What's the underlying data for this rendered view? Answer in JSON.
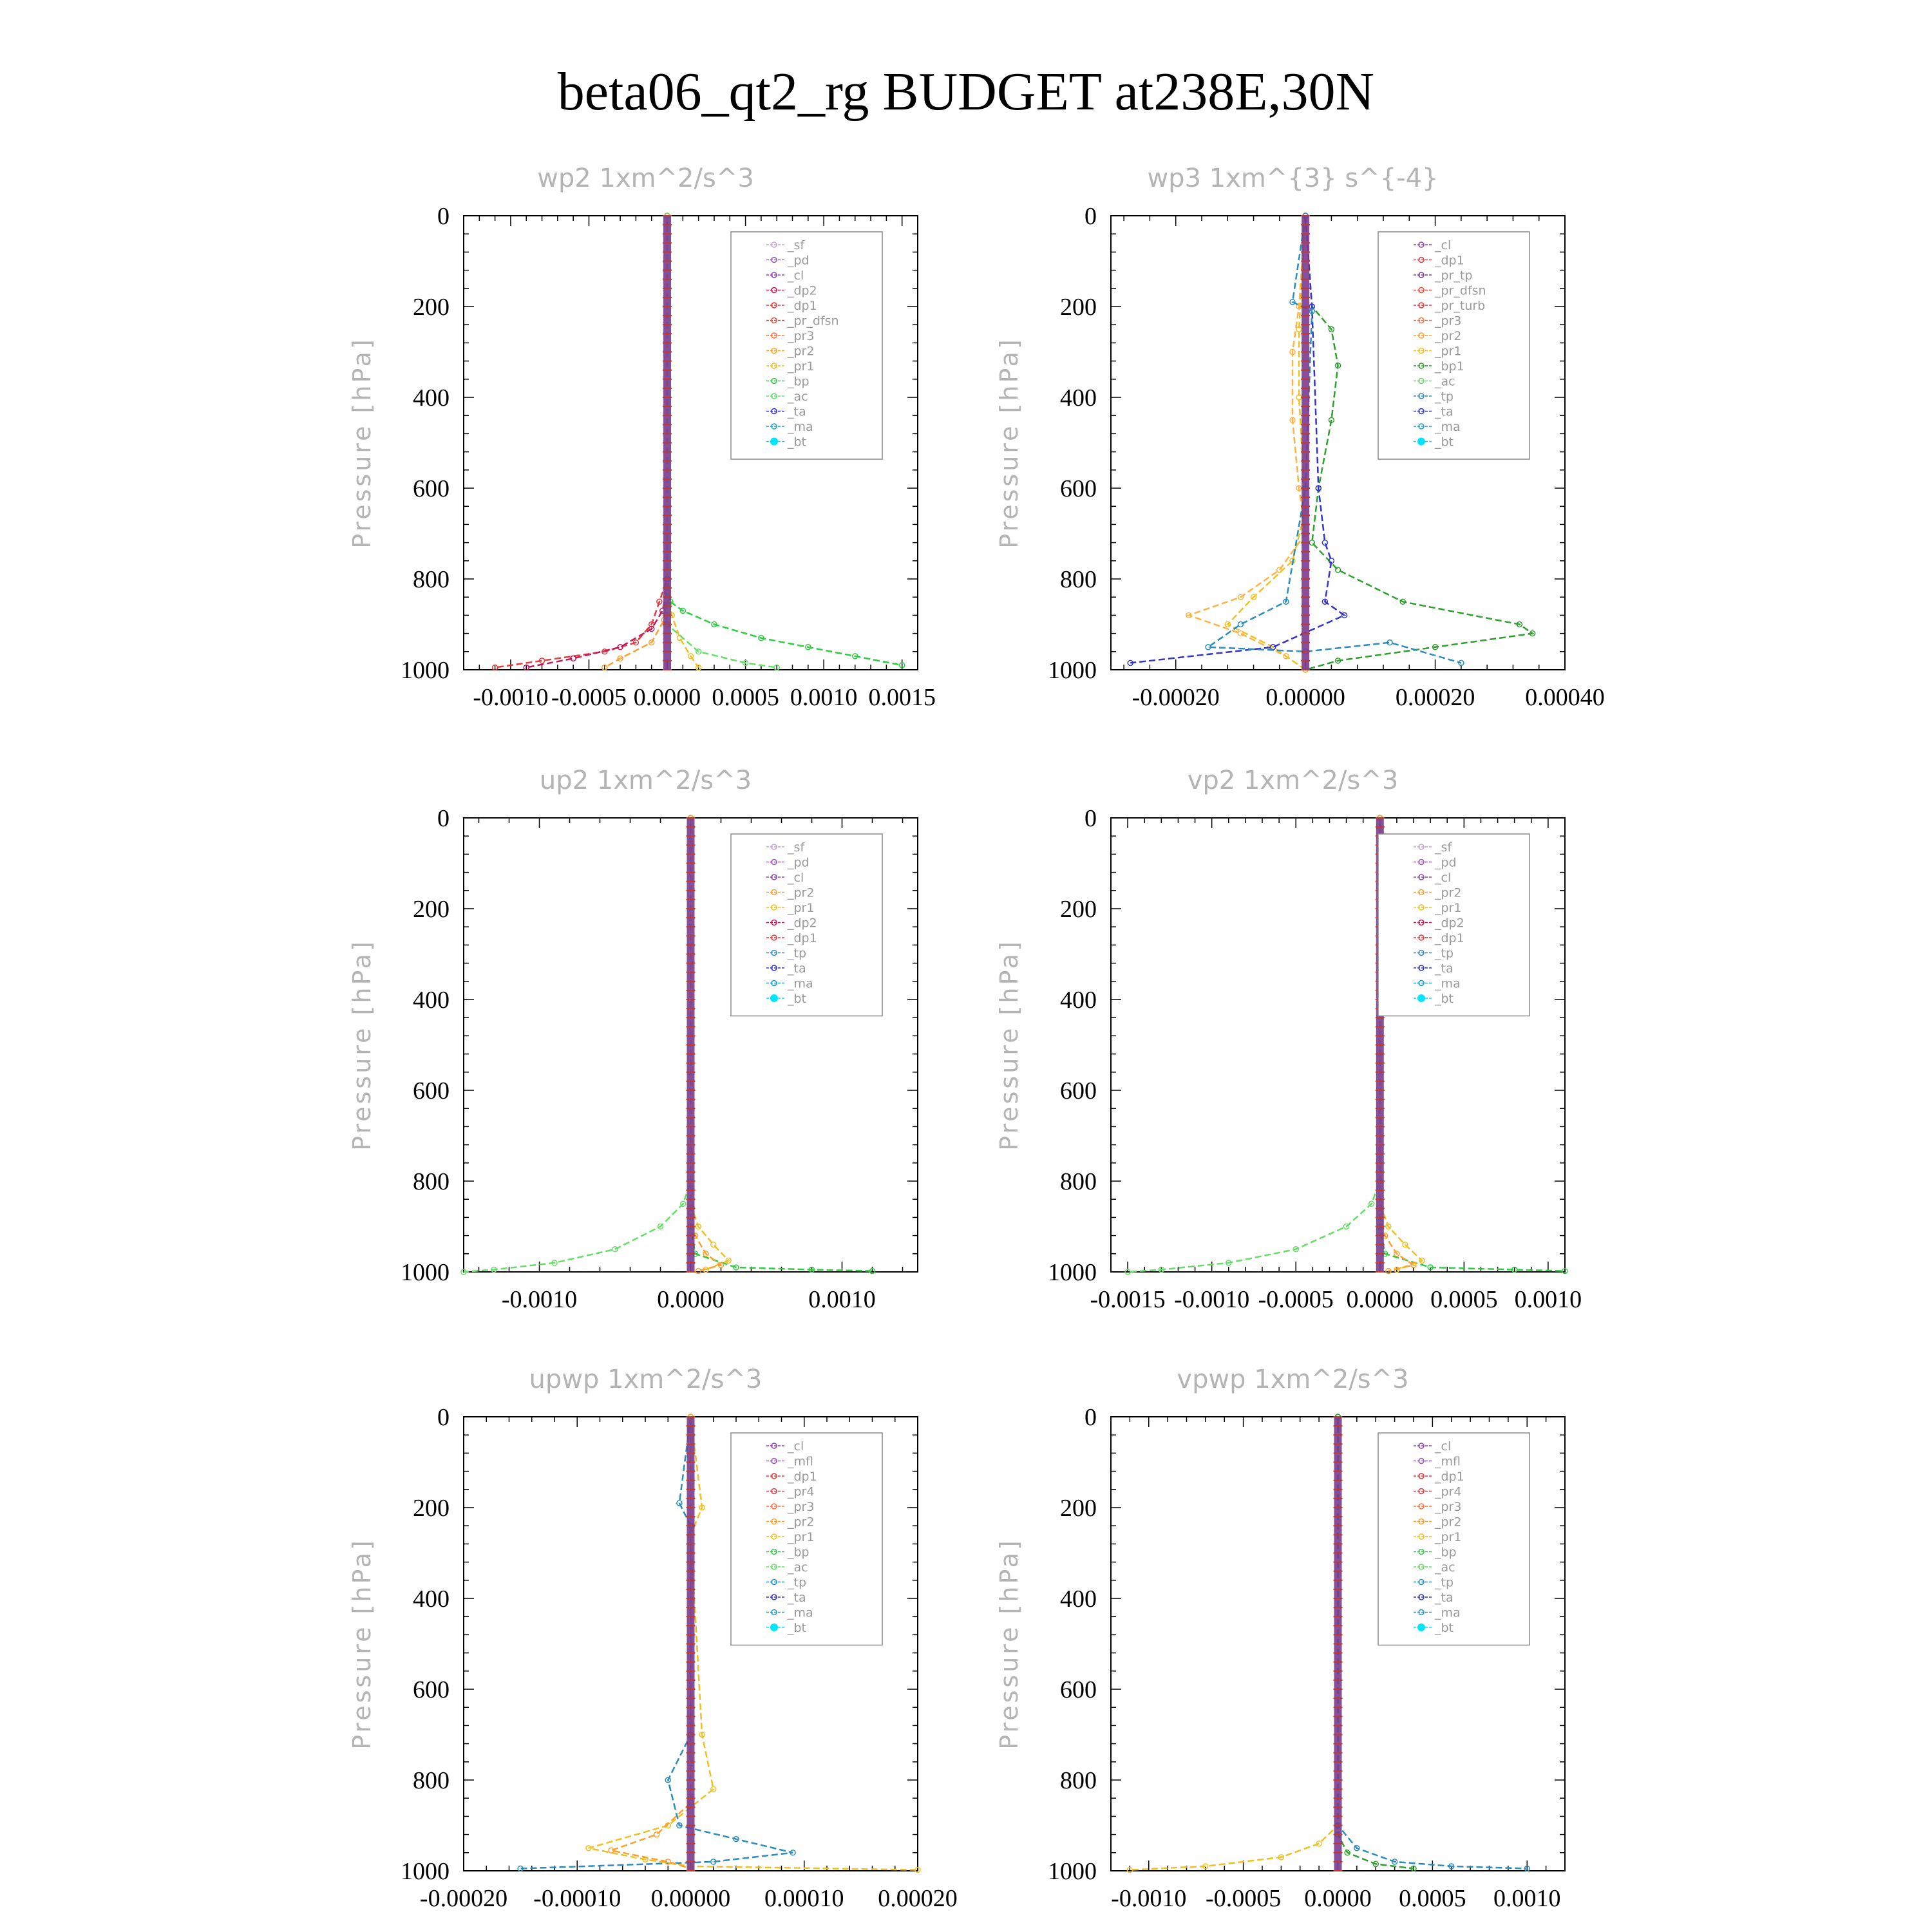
{
  "figure_title": "beta06_qt2_rg  BUDGET at238E,30N",
  "chart_data": [
    {
      "id": "wp2",
      "type": "line",
      "title": "wp2   1xm^2/s^3",
      "ylabel": "Pressure [hPa]",
      "ylim": [
        1000,
        0
      ],
      "yticks": [
        "0",
        "200",
        "400",
        "600",
        "800",
        "1000"
      ],
      "xlim": [
        -0.0013,
        0.0016
      ],
      "xticks": [
        -0.001,
        -0.0005,
        0.0,
        0.0005,
        0.001,
        0.0015
      ],
      "xticklabels": [
        "-0.0010",
        "-0.0005",
        "0.0000",
        "0.0005",
        "0.0010",
        "0.0015"
      ],
      "legend": [
        "_sf",
        "_pd",
        "_cl",
        "_dp2",
        "_dp1",
        "_pr_dfsn",
        "_pr3",
        "_pr2",
        "_pr1",
        "_bp",
        "_ac",
        "_ta",
        "_ma",
        "_bt"
      ],
      "series": [
        {
          "name": "_bp",
          "color": "#2ecc40",
          "x": [
            0,
            0,
            2e-05,
            0.0001,
            0.0003,
            0.0006,
            0.0009,
            0.0012,
            0.0015
          ],
          "y": [
            0,
            800,
            850,
            870,
            900,
            930,
            950,
            970,
            990
          ]
        },
        {
          "name": "_dp1",
          "color": "#e8383d",
          "x": [
            0,
            0,
            -5e-05,
            -0.0001,
            -0.0002,
            -0.0004,
            -0.0008,
            -0.0011
          ],
          "y": [
            0,
            800,
            850,
            900,
            940,
            960,
            980,
            995
          ]
        },
        {
          "name": "_dp2",
          "color": "#c2185b",
          "x": [
            0,
            0,
            -3e-05,
            -0.0001,
            -0.0003,
            -0.0006,
            -0.0009
          ],
          "y": [
            0,
            820,
            870,
            910,
            950,
            975,
            995
          ]
        },
        {
          "name": "_pr1",
          "color": "#f0c020",
          "x": [
            0,
            0,
            3e-05,
            8e-05,
            0.00015,
            0.0002
          ],
          "y": [
            0,
            820,
            880,
            930,
            970,
            995
          ]
        },
        {
          "name": "_pr2",
          "color": "#ff9f2e",
          "x": [
            0,
            0,
            -2e-05,
            -0.0001,
            -0.0003,
            -0.0004
          ],
          "y": [
            0,
            830,
            890,
            940,
            975,
            995
          ]
        },
        {
          "name": "_ac",
          "color": "#66dd66",
          "x": [
            0,
            0,
            0.0002,
            0.0005,
            0.0007
          ],
          "y": [
            0,
            900,
            960,
            985,
            995
          ]
        }
      ]
    },
    {
      "id": "wp3",
      "type": "line",
      "title": "wp3   1xm^{3} s^{-4}",
      "ylabel": "Pressure [hPa]",
      "ylim": [
        1000,
        0
      ],
      "yticks": [
        "0",
        "200",
        "400",
        "600",
        "800",
        "1000"
      ],
      "xlim": [
        -0.0003,
        0.0004
      ],
      "xticks": [
        -0.0002,
        0.0,
        0.0002,
        0.0004
      ],
      "xticklabels": [
        "-0.00020",
        "0.00000",
        "0.00020",
        "0.00040"
      ],
      "legend": [
        "_cl",
        "_dp1",
        "_pr_tp",
        "_pr_dfsn",
        "_pr_turb",
        "_pr3",
        "_pr2",
        "_pr1",
        "_bp1",
        "_ac",
        "_tp",
        "_ta",
        "_ma",
        "_bt"
      ],
      "series": [
        {
          "name": "_bp1",
          "color": "#2ca02c",
          "x": [
            0,
            1e-05,
            4e-05,
            5e-05,
            4e-05,
            2e-05,
            1e-05,
            5e-05,
            0.00015,
            0.00033,
            0.00035,
            0.0002,
            5e-05,
            0
          ],
          "y": [
            0,
            200,
            250,
            330,
            450,
            600,
            720,
            780,
            850,
            900,
            920,
            950,
            980,
            1000
          ]
        },
        {
          "name": "_pr1",
          "color": "#ffb347",
          "x": [
            0,
            -1e-05,
            -2e-05,
            -2e-05,
            -1e-05,
            0,
            -4e-05,
            -0.0001,
            -0.00018,
            -0.0001,
            -3e-05,
            0
          ],
          "y": [
            0,
            200,
            300,
            450,
            600,
            700,
            780,
            840,
            880,
            920,
            970,
            1000
          ]
        },
        {
          "name": "_pr2",
          "color": "#f0c020",
          "x": [
            0,
            -1e-05,
            -1e-05,
            0,
            -2e-05,
            -8e-05,
            -0.00012,
            -5e-05,
            0
          ],
          "y": [
            0,
            250,
            400,
            650,
            760,
            840,
            900,
            950,
            1000
          ]
        },
        {
          "name": "_ta",
          "color": "#3333cc",
          "x": [
            0,
            1e-05,
            2e-05,
            3e-05,
            4e-05,
            3e-05,
            6e-05,
            -5e-05,
            -0.00027
          ],
          "y": [
            0,
            200,
            600,
            720,
            760,
            850,
            880,
            950,
            985
          ]
        },
        {
          "name": "_tp",
          "color": "#2b8cbe",
          "x": [
            0,
            -2e-05,
            1e-05,
            0,
            -3e-05,
            -0.0001,
            -0.00015,
            0,
            0.00013,
            0.00024
          ],
          "y": [
            0,
            190,
            210,
            600,
            850,
            900,
            950,
            960,
            940,
            985
          ]
        }
      ]
    },
    {
      "id": "up2",
      "type": "line",
      "title": "up2   1xm^2/s^3",
      "ylabel": "Pressure [hPa]",
      "ylim": [
        1000,
        0
      ],
      "yticks": [
        "0",
        "200",
        "400",
        "600",
        "800",
        "1000"
      ],
      "xlim": [
        -0.0015,
        0.0015
      ],
      "xticks": [
        -0.001,
        0.0,
        0.001
      ],
      "xticklabels": [
        "-0.0010",
        "0.0000",
        "0.0010"
      ],
      "legend": [
        "_sf",
        "_pd",
        "_cl",
        "_pr2",
        "_pr1",
        "_dp2",
        "_dp1",
        "_tp",
        "_ta",
        "_ma",
        "_bt"
      ],
      "series": [
        {
          "name": "_dp1",
          "color": "#66dd66",
          "x": [
            0,
            0,
            -5e-05,
            -0.0002,
            -0.0005,
            -0.0009,
            -0.0013,
            -0.0015
          ],
          "y": [
            0,
            800,
            850,
            900,
            950,
            980,
            995,
            1000
          ]
        },
        {
          "name": "_dp2",
          "color": "#2ecc40",
          "x": [
            0,
            0,
            3e-05,
            0.0003,
            0.0008,
            0.0012
          ],
          "y": [
            0,
            900,
            960,
            990,
            995,
            998
          ]
        },
        {
          "name": "_pr1",
          "color": "#f0c020",
          "x": [
            0,
            0,
            5e-05,
            0.00015,
            0.00025,
            0.0001
          ],
          "y": [
            0,
            850,
            900,
            940,
            975,
            995
          ]
        },
        {
          "name": "_pr2",
          "color": "#ff9f2e",
          "x": [
            0,
            0,
            3e-05,
            0.0001,
            0.0002,
            5e-05
          ],
          "y": [
            0,
            870,
            920,
            960,
            985,
            998
          ]
        }
      ]
    },
    {
      "id": "vp2",
      "type": "line",
      "title": "vp2   1xm^2/s^3",
      "ylabel": "Pressure [hPa]",
      "ylim": [
        1000,
        0
      ],
      "yticks": [
        "0",
        "200",
        "400",
        "600",
        "800",
        "1000"
      ],
      "xlim": [
        -0.0016,
        0.0011
      ],
      "xticks": [
        -0.0015,
        -0.001,
        -0.0005,
        0.0,
        0.0005,
        0.001
      ],
      "xticklabels": [
        "-0.0015",
        "-0.0010",
        "-0.0005",
        "0.0000",
        "0.0005",
        "0.0010"
      ],
      "legend": [
        "_sf",
        "_pd",
        "_cl",
        "_pr2",
        "_pr1",
        "_dp2",
        "_dp1",
        "_tp",
        "_ta",
        "_ma",
        "_bt"
      ],
      "series": [
        {
          "name": "_dp1",
          "color": "#66dd66",
          "x": [
            0,
            0,
            -5e-05,
            -0.0002,
            -0.0005,
            -0.0009,
            -0.0013,
            -0.0015
          ],
          "y": [
            0,
            800,
            850,
            900,
            950,
            980,
            995,
            1000
          ]
        },
        {
          "name": "_dp2",
          "color": "#2ecc40",
          "x": [
            0,
            0,
            3e-05,
            0.0003,
            0.0008,
            0.0011
          ],
          "y": [
            0,
            900,
            960,
            990,
            995,
            998
          ]
        },
        {
          "name": "_pr1",
          "color": "#f0c020",
          "x": [
            0,
            0,
            5e-05,
            0.00015,
            0.00025,
            0.0001
          ],
          "y": [
            0,
            850,
            900,
            940,
            975,
            995
          ]
        },
        {
          "name": "_pr2",
          "color": "#ff9f2e",
          "x": [
            0,
            0,
            3e-05,
            0.0001,
            0.0002,
            5e-05
          ],
          "y": [
            0,
            870,
            920,
            960,
            985,
            998
          ]
        }
      ]
    },
    {
      "id": "upwp",
      "type": "line",
      "title": "upwp   1xm^2/s^3",
      "ylabel": "Pressure [hPa]",
      "ylim": [
        1000,
        0
      ],
      "yticks": [
        "0",
        "200",
        "400",
        "600",
        "800",
        "1000"
      ],
      "xlim": [
        -0.0002,
        0.0002
      ],
      "xticks": [
        -0.0002,
        -0.0001,
        0.0,
        0.0001,
        0.0002
      ],
      "xticklabels": [
        "-0.00020",
        "-0.00010",
        "0.00000",
        "0.00010",
        "0.00020"
      ],
      "legend": [
        "_cl",
        "_mfl",
        "_dp1",
        "_pr4",
        "_pr3",
        "_pr2",
        "_pr1",
        "_bp",
        "_ac",
        "_tp",
        "_ta",
        "_ma",
        "_bt"
      ],
      "series": [
        {
          "name": "_tp",
          "color": "#2b8cbe",
          "x": [
            0,
            -1e-05,
            0,
            0,
            -2e-05,
            -1e-05,
            4e-05,
            9e-05,
            2e-05,
            -0.00015
          ],
          "y": [
            0,
            190,
            240,
            700,
            800,
            900,
            930,
            960,
            980,
            995
          ]
        },
        {
          "name": "_pr1",
          "color": "#f0c020",
          "x": [
            0,
            1e-05,
            0,
            1e-05,
            2e-05,
            -2e-05,
            -9e-05,
            -4e-05,
            0,
            0.0002
          ],
          "y": [
            0,
            200,
            260,
            700,
            820,
            900,
            950,
            975,
            990,
            998
          ]
        },
        {
          "name": "_pr2",
          "color": "#ff9f2e",
          "x": [
            0,
            0,
            -3e-05,
            -7e-05,
            -2e-05,
            0
          ],
          "y": [
            0,
            850,
            920,
            955,
            980,
            995
          ]
        }
      ]
    },
    {
      "id": "vpwp",
      "type": "line",
      "title": "vpwp   1xm^2/s^3",
      "ylabel": "Pressure [hPa]",
      "ylim": [
        1000,
        0
      ],
      "yticks": [
        "0",
        "200",
        "400",
        "600",
        "800",
        "1000"
      ],
      "xlim": [
        -0.0012,
        0.0012
      ],
      "xticks": [
        -0.001,
        -0.0005,
        0.0,
        0.0005,
        0.001
      ],
      "xticklabels": [
        "-0.0010",
        "-0.0005",
        "0.0000",
        "0.0005",
        "0.0010"
      ],
      "legend": [
        "_cl",
        "_mfl",
        "_dp1",
        "_pr4",
        "_pr3",
        "_pr2",
        "_pr1",
        "_bp",
        "_ac",
        "_tp",
        "_ta",
        "_ma",
        "_bt"
      ],
      "series": [
        {
          "name": "_pr1",
          "color": "#f0c020",
          "x": [
            0,
            0,
            -0.0001,
            -0.0003,
            -0.0007,
            -0.0011
          ],
          "y": [
            0,
            900,
            940,
            970,
            990,
            998
          ]
        },
        {
          "name": "_tp",
          "color": "#2b8cbe",
          "x": [
            0,
            0,
            0.0001,
            0.0003,
            0.0006,
            0.001
          ],
          "y": [
            0,
            900,
            950,
            980,
            990,
            995
          ]
        },
        {
          "name": "_bp",
          "color": "#2ca02c",
          "x": [
            0,
            0,
            5e-05,
            0.0002,
            0.0004
          ],
          "y": [
            0,
            920,
            960,
            985,
            995
          ]
        }
      ]
    }
  ],
  "legend_colors": {
    "_sf": "#c9a0dc",
    "_pd": "#9b59b6",
    "_cl": "#8e44ad",
    "_dp2": "#c2185b",
    "_dp1": "#e8383d",
    "_pr_dfsn": "#e74c3c",
    "_pr_tp": "#7d3c98",
    "_pr_turb": "#e8383d",
    "_pr4": "#e8383d",
    "_pr3": "#ff6f3c",
    "_pr2": "#ff9f2e",
    "_pr1": "#f0c020",
    "_bp": "#2ecc40",
    "_bp1": "#2ca02c",
    "_ac": "#66dd66",
    "_tp": "#2b8cbe",
    "_ta": "#3333cc",
    "_ma": "#1f9bd1",
    "_bt": "#00e5ff",
    "_mfl": "#9b59b6"
  }
}
